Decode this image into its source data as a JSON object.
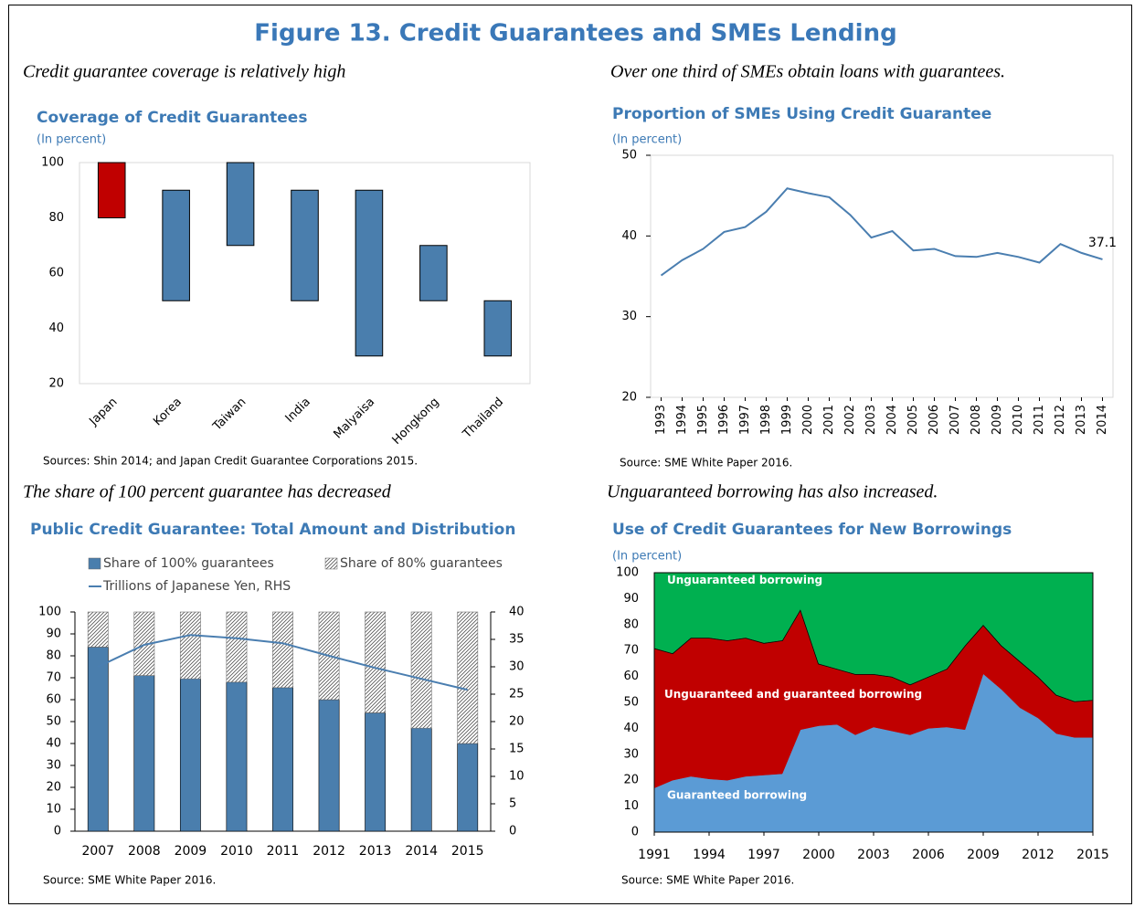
{
  "title": "Figure 13. Credit Guarantees and SMEs Lending",
  "chart_data": [
    {
      "type": "range",
      "caption": "Credit guarantee coverage is relatively high",
      "title": "Coverage of Credit Guarantees",
      "subtitle": "(In percent)",
      "source": "Sources: Shin 2014; and Japan Credit Guarantee Corporations 2015.",
      "categories": [
        "Japan",
        "Korea",
        "Taiwan",
        "India",
        "Malyaisa",
        "Hongkong",
        "Thailand"
      ],
      "low": [
        80,
        50,
        70,
        50,
        30,
        50,
        30
      ],
      "high": [
        100,
        90,
        100,
        90,
        90,
        70,
        50
      ],
      "colors": [
        "#c00000",
        "#4a7ead",
        "#4a7ead",
        "#4a7ead",
        "#4a7ead",
        "#4a7ead",
        "#4a7ead"
      ],
      "ylim": [
        20,
        100
      ],
      "yticks": [
        20,
        40,
        60,
        80,
        100
      ]
    },
    {
      "type": "line",
      "caption": "Over one third of SMEs obtain loans with guarantees.",
      "title": "Proportion of SMEs Using Credit Guarantee",
      "subtitle": "(In percent)",
      "source": "Source: SME White Paper 2016.",
      "x": [
        1993,
        1994,
        1995,
        1996,
        1997,
        1998,
        1999,
        2000,
        2001,
        2002,
        2003,
        2004,
        2005,
        2006,
        2007,
        2008,
        2009,
        2010,
        2011,
        2012,
        2013,
        2014
      ],
      "values": [
        35.1,
        37.0,
        38.4,
        40.5,
        41.1,
        43.0,
        45.9,
        45.3,
        44.8,
        42.6,
        39.8,
        40.6,
        38.2,
        38.4,
        37.5,
        37.4,
        37.9,
        37.4,
        36.7,
        39.0,
        37.9,
        37.1
      ],
      "color": "#4a7eb0",
      "label_last": true,
      "xlim": [
        1992.5,
        2014.5
      ],
      "ylim": [
        20,
        50
      ],
      "yticks": [
        20,
        30,
        40,
        50
      ]
    },
    {
      "type": "stackbar",
      "caption": "The share of 100 percent guarantee has decreased",
      "title": "Public Credit Guarantee: Total Amount and Distribution",
      "source": "Source: SME White Paper 2016.",
      "categories": [
        "2007",
        "2008",
        "2009",
        "2010",
        "2011",
        "2012",
        "2013",
        "2014",
        "2015"
      ],
      "series": [
        {
          "name": "Share of 100% guarantees",
          "color": "#4a7ead",
          "values": [
            84,
            71,
            69.5,
            68,
            65.5,
            60,
            54,
            47,
            40
          ]
        },
        {
          "name": "Share of 80% guarantees",
          "color": "#555555",
          "pattern": "hatch",
          "values": [
            16,
            29,
            30.5,
            32,
            34.5,
            40,
            46,
            53,
            60
          ]
        },
        {
          "name": "Trillions of Japanese Yen, RHS",
          "color": "#4a7eb0",
          "type": "line",
          "axis": "y2",
          "values": [
            30,
            34,
            35.8,
            35.2,
            34.3,
            32,
            29.8,
            27.8,
            25.8
          ]
        }
      ],
      "ylim": [
        0,
        100
      ],
      "yticks": [
        0,
        10,
        20,
        30,
        40,
        50,
        60,
        70,
        80,
        90,
        100
      ],
      "y2lim": [
        0,
        40
      ],
      "y2ticks": [
        0,
        5,
        10,
        15,
        20,
        25,
        30,
        35,
        40
      ]
    },
    {
      "type": "area",
      "caption": "Unguaranteed borrowing has also increased.",
      "title": "Use of Credit Guarantees for New Borrowings",
      "subtitle": "(In percent)",
      "source": "Source: SME White Paper 2016.",
      "x": [
        1991,
        1992,
        1993,
        1994,
        1995,
        1996,
        1997,
        1998,
        1999,
        2000,
        2001,
        2002,
        2003,
        2004,
        2005,
        2006,
        2007,
        2008,
        2009,
        2010,
        2011,
        2012,
        2013,
        2014,
        2015
      ],
      "series": [
        {
          "name": "Guaranteed borrowing",
          "color": "#5b9bd5",
          "values": [
            17,
            20,
            21.5,
            20.5,
            20,
            21.5,
            22,
            22.5,
            39.5,
            41,
            41.5,
            37.5,
            40.5,
            39,
            37.5,
            40,
            40.5,
            39.5,
            61,
            55,
            48,
            44,
            38,
            36.5,
            36.5
          ]
        },
        {
          "name": "Unguaranteed and guaranteed borrowing",
          "color": "#c00000",
          "outline": "#000000",
          "values": [
            54,
            49,
            53.5,
            54.5,
            54,
            53.5,
            51,
            51.5,
            46.5,
            24,
            21.5,
            23.5,
            20.5,
            21,
            19.5,
            20,
            22.5,
            32.5,
            19,
            17,
            18,
            16,
            15,
            14,
            14.5
          ]
        },
        {
          "name": "Unguaranteed borrowing",
          "color": "#00b050",
          "values": [
            29,
            31,
            25,
            25,
            26,
            25,
            27,
            26,
            14,
            35,
            37,
            39,
            39,
            40,
            43,
            40,
            37,
            28,
            20,
            28,
            34,
            40,
            47,
            49.5,
            49
          ]
        }
      ],
      "xlim": [
        1991,
        2015
      ],
      "xticks": [
        1991,
        1994,
        1997,
        2000,
        2003,
        2006,
        2009,
        2012,
        2015
      ],
      "ylim": [
        0,
        100
      ],
      "yticks": [
        0,
        10,
        20,
        30,
        40,
        50,
        60,
        70,
        80,
        90,
        100
      ]
    }
  ]
}
